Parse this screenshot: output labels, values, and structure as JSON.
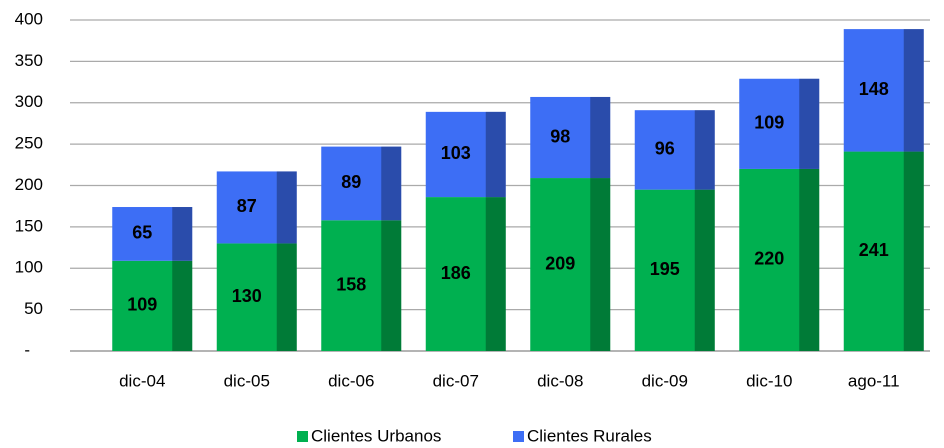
{
  "chart_data": {
    "type": "stacked-bar",
    "categories": [
      "dic-04",
      "dic-05",
      "dic-06",
      "dic-07",
      "dic-08",
      "dic-09",
      "dic-10",
      "ago-11"
    ],
    "series": [
      {
        "name": "Clientes Urbanos",
        "color": "#00b050",
        "values": [
          109,
          130,
          158,
          186,
          209,
          195,
          220,
          241
        ]
      },
      {
        "name": "Clientes Rurales",
        "color": "#3d6ef5",
        "values": [
          65,
          87,
          89,
          103,
          98,
          96,
          109,
          148
        ]
      }
    ],
    "ylim": [
      0,
      400
    ],
    "yticks": [
      {
        "value": 0,
        "label": "-"
      },
      50,
      100,
      150,
      200,
      250,
      300,
      350,
      400
    ],
    "grid": true,
    "legend": "bottom"
  }
}
